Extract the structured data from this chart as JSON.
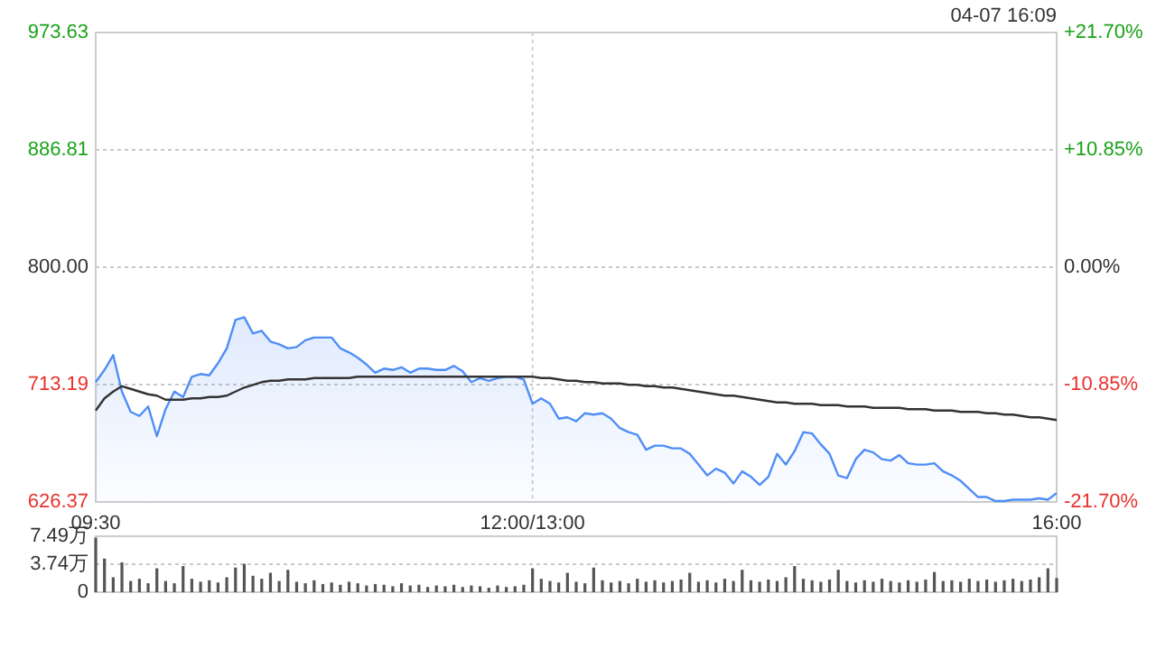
{
  "chart_data": [
    {
      "type": "area",
      "annotations": [
        "04-07 16:09"
      ],
      "grid": true,
      "categories": [
        "09:30",
        null,
        null,
        null,
        null,
        null,
        null,
        null,
        null,
        null,
        null,
        null,
        null,
        null,
        null,
        null,
        null,
        null,
        null,
        null,
        null,
        null,
        null,
        null,
        null,
        null,
        null,
        null,
        null,
        null,
        null,
        null,
        null,
        null,
        null,
        null,
        null,
        null,
        null,
        null,
        null,
        null,
        null,
        null,
        null,
        null,
        null,
        null,
        null,
        null,
        "12:00/13:00",
        null,
        null,
        null,
        null,
        null,
        null,
        null,
        null,
        null,
        null,
        null,
        null,
        null,
        null,
        null,
        null,
        null,
        null,
        null,
        null,
        null,
        null,
        null,
        null,
        null,
        null,
        null,
        null,
        null,
        null,
        null,
        null,
        null,
        null,
        null,
        null,
        null,
        null,
        null,
        null,
        null,
        null,
        null,
        null,
        null,
        null,
        null,
        null,
        null,
        null,
        null,
        null,
        null,
        null,
        null,
        null,
        null,
        null,
        null,
        "16:00"
      ],
      "ylim": [
        626.37,
        973.63
      ],
      "yticks": [
        626.37,
        713.19,
        {
          "value": 800,
          "label": "800.00"
        },
        886.81,
        973.63
      ],
      "y2lim": [
        -21.7,
        21.7
      ],
      "y2ticks": [
        {
          "value": -21.7,
          "label": "-21.70%"
        },
        {
          "value": -10.85,
          "label": "-10.85%"
        },
        {
          "value": 0,
          "label": "0.00%"
        },
        {
          "value": 10.85,
          "label": "+10.85%"
        },
        {
          "value": 21.7,
          "label": "+21.70%"
        }
      ],
      "series": [
        {
          "color": "#4f8ef7",
          "values": [
            715,
            724,
            735,
            708,
            693,
            690,
            697,
            675,
            695,
            708,
            704,
            719,
            721,
            720,
            729,
            740,
            761,
            763,
            751,
            753,
            745,
            743,
            740,
            741,
            746,
            748,
            748,
            748,
            740,
            737,
            733,
            728,
            722,
            725,
            724,
            726,
            722,
            725,
            725,
            724,
            724,
            727,
            723,
            715,
            718,
            716,
            718,
            719,
            719,
            717,
            699,
            703,
            699,
            688,
            689,
            686,
            692,
            691,
            692,
            688,
            681,
            678,
            676,
            665,
            668,
            668,
            666,
            666,
            662,
            654,
            646,
            651,
            648,
            640,
            649,
            645,
            639,
            645,
            662,
            654,
            664,
            678,
            677,
            669,
            662,
            646,
            644,
            658,
            665,
            663,
            658,
            657,
            661,
            655,
            654,
            654,
            655,
            649,
            646,
            642,
            636,
            630,
            630,
            627,
            627,
            628,
            628,
            628,
            629,
            628,
            633
          ]
        },
        {
          "type": "line",
          "color": "#333333",
          "values": [
            694,
            703,
            708,
            712,
            710,
            708,
            706,
            705,
            702,
            702,
            702,
            703,
            703,
            704,
            704,
            705,
            708,
            711,
            713,
            715,
            716,
            716,
            717,
            717,
            717,
            718,
            718,
            718,
            718,
            718,
            719,
            719,
            719,
            719,
            719,
            719,
            719,
            719,
            719,
            719,
            719,
            719,
            719,
            719,
            719,
            719,
            719,
            719,
            719,
            719,
            719,
            718,
            718,
            717,
            716,
            716,
            715,
            715,
            714,
            714,
            714,
            713,
            713,
            712,
            712,
            711,
            711,
            710,
            709,
            708,
            707,
            706,
            705,
            705,
            704,
            703,
            702,
            701,
            700,
            700,
            699,
            699,
            699,
            698,
            698,
            698,
            697,
            697,
            697,
            696,
            696,
            696,
            696,
            695,
            695,
            695,
            694,
            694,
            694,
            693,
            693,
            693,
            692,
            692,
            691,
            691,
            690,
            689,
            689,
            688,
            687
          ]
        },
        {
          "type": "bar",
          "axis": "y3",
          "color": "#555555",
          "values": [
            7.3,
            4.5,
            2.0,
            4.0,
            1.5,
            1.8,
            1.2,
            3.2,
            1.5,
            1.2,
            3.5,
            1.8,
            1.4,
            1.6,
            1.3,
            2.0,
            3.3,
            3.8,
            2.2,
            1.8,
            2.6,
            1.5,
            3.0,
            1.4,
            1.2,
            1.6,
            1.1,
            1.3,
            1.0,
            1.4,
            1.2,
            0.9,
            1.1,
            1.0,
            0.8,
            1.2,
            0.9,
            1.0,
            0.7,
            0.9,
            0.8,
            1.0,
            0.7,
            0.9,
            0.8,
            0.6,
            0.9,
            0.7,
            0.8,
            1.0,
            3.2,
            1.8,
            1.5,
            1.3,
            2.6,
            1.4,
            1.2,
            3.3,
            1.6,
            1.3,
            1.5,
            1.2,
            1.8,
            1.4,
            1.6,
            1.3,
            1.5,
            1.7,
            2.6,
            1.4,
            1.6,
            1.3,
            1.8,
            1.5,
            3.0,
            1.6,
            1.4,
            1.7,
            1.5,
            2.0,
            3.5,
            1.8,
            1.6,
            1.4,
            1.7,
            3.0,
            1.5,
            1.3,
            1.6,
            1.4,
            1.8,
            1.5,
            1.3,
            1.6,
            1.4,
            1.7,
            2.7,
            1.5,
            1.6,
            1.4,
            1.8,
            1.5,
            1.7,
            1.4,
            1.6,
            1.8,
            1.5,
            1.7,
            2.0,
            3.2,
            1.9
          ]
        }
      ],
      "y3lim": [
        0,
        7.49
      ],
      "y3ticks": [
        0,
        {
          "value": 3.74,
          "label": "3.74万"
        },
        {
          "value": 7.49,
          "label": "7.49万"
        }
      ]
    }
  ]
}
